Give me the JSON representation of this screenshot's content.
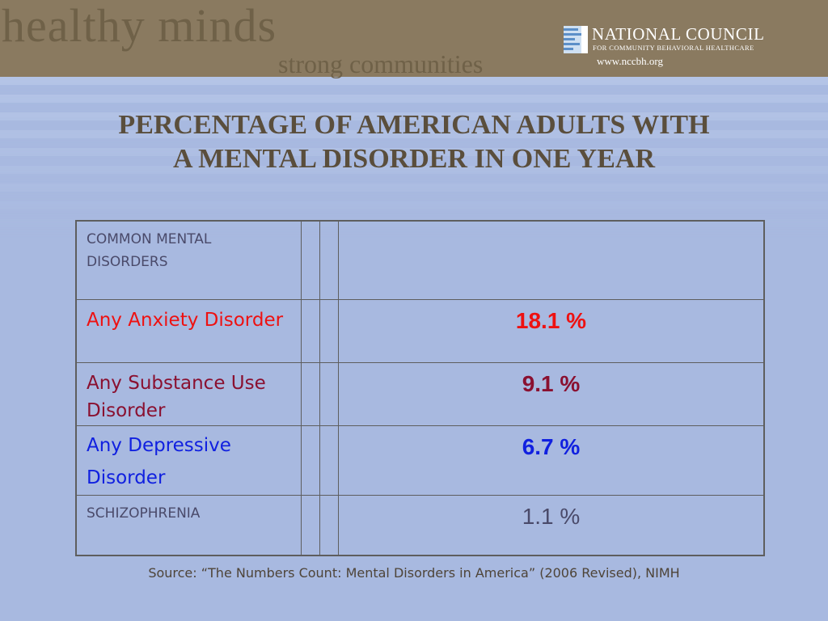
{
  "header": {
    "watermark_line1": "healthy minds",
    "watermark_line2": "strong communities",
    "org_name": "NATIONAL COUNCIL",
    "org_subtitle": "FOR COMMUNITY BEHAVIORAL HEALTHCARE",
    "org_url": "www.nccbh.org"
  },
  "title": {
    "line1": "PERCENTAGE OF AMERICAN ADULTS WITH",
    "line2": "A MENTAL DISORDER IN ONE YEAR"
  },
  "table": {
    "header_label": "COMMON MENTAL DISORDERS",
    "header_value": "",
    "rows": [
      {
        "label": "Any Anxiety Disorder",
        "value": "18.1 %",
        "color": "#ee1111"
      },
      {
        "label": "Any Substance Use Disorder",
        "value": "9.1 %",
        "color": "#8a1030"
      },
      {
        "label": "Any Depressive Disorder",
        "value": "6.7 %",
        "color": "#1020e0"
      },
      {
        "label": "SCHIZOPHRENIA",
        "value": "1.1 %",
        "color": "#4a4a6a"
      }
    ]
  },
  "source": "Source: “The Numbers Count: Mental Disorders in America” (2006 Revised), NIMH",
  "colors": {
    "background": "#a8b9e0",
    "header_band": "#8a7a60",
    "title_text": "#5a4e3c"
  }
}
